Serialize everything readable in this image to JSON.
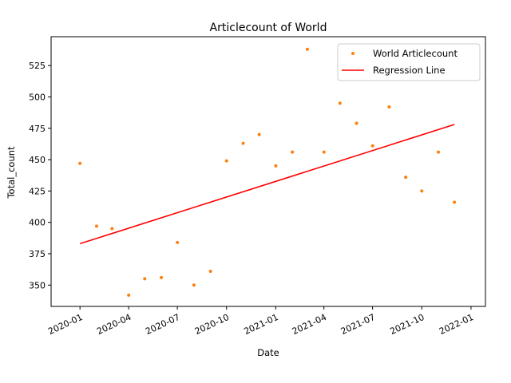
{
  "chart_data": {
    "type": "scatter",
    "title": "Articlecount of World",
    "xlabel": "Date",
    "ylabel": "Total_count",
    "x_ticks": [
      "2020-01",
      "2020-04",
      "2020-07",
      "2020-10",
      "2021-01",
      "2021-04",
      "2021-07",
      "2021-10",
      "2022-01"
    ],
    "y_ticks": [
      350,
      375,
      400,
      425,
      450,
      475,
      500,
      525
    ],
    "xlim": [
      "2019-11-08",
      "2022-01-28"
    ],
    "ylim": [
      333,
      548
    ],
    "legend_position": "top-right",
    "grid": false,
    "series": [
      {
        "name": "World Articlecount",
        "kind": "points",
        "color": "#ff7f0e",
        "x": [
          "2020-01-01",
          "2020-02-01",
          "2020-03-01",
          "2020-04-01",
          "2020-05-01",
          "2020-06-01",
          "2020-07-01",
          "2020-08-01",
          "2020-09-01",
          "2020-10-01",
          "2020-11-01",
          "2020-12-01",
          "2021-01-01",
          "2021-02-01",
          "2021-03-01",
          "2021-04-01",
          "2021-05-01",
          "2021-06-01",
          "2021-07-01",
          "2021-08-01",
          "2021-09-01",
          "2021-10-01",
          "2021-11-01",
          "2021-12-01"
        ],
        "values": [
          447,
          397,
          395,
          342,
          355,
          356,
          384,
          350,
          361,
          449,
          463,
          470,
          445,
          456,
          538,
          456,
          495,
          479,
          461,
          492,
          436,
          425,
          456,
          416
        ]
      },
      {
        "name": "Regression Line",
        "kind": "line",
        "color": "#ff0000",
        "x": [
          "2020-01-01",
          "2021-12-01"
        ],
        "values": [
          383,
          478
        ]
      }
    ]
  }
}
